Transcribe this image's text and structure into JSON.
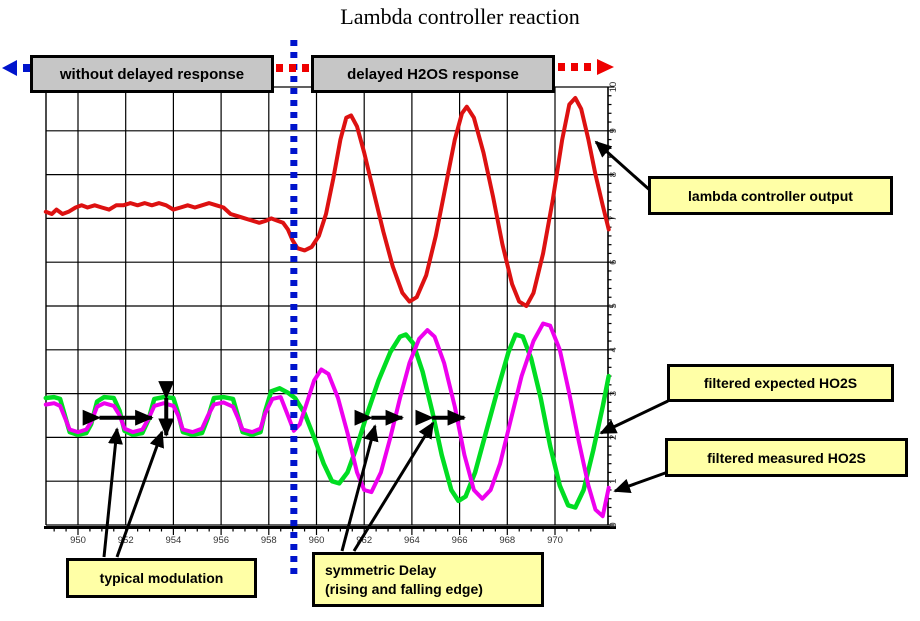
{
  "title": "Lambda controller reaction",
  "banners": {
    "without_delay": "without delayed response",
    "delayed": "delayed H2OS response"
  },
  "callouts": {
    "lambda_output": "lambda controller output",
    "filtered_expected": "filtered expected HO2S",
    "filtered_measured": "filtered measured HO2S",
    "typical_modulation": "typical modulation",
    "symmetric_delay_line1": "symmetric Delay",
    "symmetric_delay_line2": "(rising and falling edge)"
  },
  "colors": {
    "lambda_output": "#dd1111",
    "expected": "#00dd22",
    "measured": "#ee00ee",
    "divider": "#0014cc",
    "left_arrow": "#0014cc",
    "right_arrow": "#ee0000",
    "callout_bg": "#ffffa6",
    "banner_bg": "#c6c6c6",
    "grid": "#000000",
    "tick_text": "#333333"
  },
  "chart_data": {
    "type": "line",
    "title": "Lambda controller reaction",
    "xlabel": "",
    "ylabel": "",
    "xlim": [
      948.65,
      972.3
    ],
    "ylim": [
      0,
      10
    ],
    "grid": true,
    "x_ticks": [
      950,
      952,
      954,
      956,
      958,
      960,
      962,
      964,
      966,
      968,
      970
    ],
    "y_ticks": [
      0,
      1,
      2,
      3,
      4,
      5,
      6,
      7,
      8,
      9,
      10
    ],
    "legend_position": "right-callouts",
    "series": [
      {
        "name": "lambda controller output",
        "color": "#dd1111",
        "points": [
          [
            948.65,
            7.15
          ],
          [
            948.9,
            7.1
          ],
          [
            949.1,
            7.2
          ],
          [
            949.35,
            7.1
          ],
          [
            949.6,
            7.15
          ],
          [
            949.9,
            7.25
          ],
          [
            950.15,
            7.3
          ],
          [
            950.4,
            7.25
          ],
          [
            950.7,
            7.3
          ],
          [
            951.0,
            7.25
          ],
          [
            951.3,
            7.2
          ],
          [
            951.6,
            7.3
          ],
          [
            951.9,
            7.3
          ],
          [
            952.2,
            7.35
          ],
          [
            952.5,
            7.3
          ],
          [
            952.8,
            7.35
          ],
          [
            953.1,
            7.3
          ],
          [
            953.4,
            7.35
          ],
          [
            953.7,
            7.3
          ],
          [
            954.0,
            7.2
          ],
          [
            954.3,
            7.25
          ],
          [
            954.6,
            7.3
          ],
          [
            954.9,
            7.25
          ],
          [
            955.2,
            7.3
          ],
          [
            955.5,
            7.35
          ],
          [
            955.8,
            7.3
          ],
          [
            956.1,
            7.25
          ],
          [
            956.4,
            7.1
          ],
          [
            956.7,
            7.05
          ],
          [
            957.0,
            7.0
          ],
          [
            957.3,
            6.95
          ],
          [
            957.6,
            6.9
          ],
          [
            957.9,
            6.95
          ],
          [
            958.1,
            7.0
          ],
          [
            958.35,
            6.95
          ],
          [
            958.6,
            6.9
          ],
          [
            958.8,
            6.75
          ],
          [
            959.0,
            6.5
          ],
          [
            959.2,
            6.32
          ],
          [
            959.5,
            6.27
          ],
          [
            959.8,
            6.35
          ],
          [
            960.1,
            6.6
          ],
          [
            960.4,
            7.1
          ],
          [
            960.7,
            7.9
          ],
          [
            961.0,
            8.8
          ],
          [
            961.25,
            9.3
          ],
          [
            961.45,
            9.35
          ],
          [
            961.7,
            9.1
          ],
          [
            962.0,
            8.5
          ],
          [
            962.4,
            7.6
          ],
          [
            962.8,
            6.7
          ],
          [
            963.2,
            5.9
          ],
          [
            963.6,
            5.3
          ],
          [
            963.9,
            5.1
          ],
          [
            964.2,
            5.2
          ],
          [
            964.6,
            5.7
          ],
          [
            965.0,
            6.6
          ],
          [
            965.4,
            7.7
          ],
          [
            965.8,
            8.8
          ],
          [
            966.1,
            9.4
          ],
          [
            966.3,
            9.55
          ],
          [
            966.6,
            9.3
          ],
          [
            967.0,
            8.5
          ],
          [
            967.4,
            7.5
          ],
          [
            967.8,
            6.4
          ],
          [
            968.2,
            5.5
          ],
          [
            968.5,
            5.1
          ],
          [
            968.8,
            5.0
          ],
          [
            969.1,
            5.3
          ],
          [
            969.5,
            6.2
          ],
          [
            969.9,
            7.4
          ],
          [
            970.3,
            8.8
          ],
          [
            970.6,
            9.6
          ],
          [
            970.85,
            9.75
          ],
          [
            971.1,
            9.5
          ],
          [
            971.4,
            8.8
          ],
          [
            971.7,
            8.0
          ],
          [
            972.0,
            7.3
          ],
          [
            972.25,
            6.75
          ]
        ]
      },
      {
        "name": "filtered expected HO2S",
        "color": "#00dd22",
        "points": [
          [
            948.65,
            2.9
          ],
          [
            949.0,
            2.92
          ],
          [
            949.25,
            2.88
          ],
          [
            949.45,
            2.5
          ],
          [
            949.65,
            2.12
          ],
          [
            950.0,
            2.06
          ],
          [
            950.35,
            2.1
          ],
          [
            950.55,
            2.3
          ],
          [
            950.8,
            2.82
          ],
          [
            951.1,
            2.92
          ],
          [
            951.5,
            2.9
          ],
          [
            951.75,
            2.6
          ],
          [
            951.95,
            2.15
          ],
          [
            952.3,
            2.06
          ],
          [
            952.7,
            2.1
          ],
          [
            952.95,
            2.4
          ],
          [
            953.2,
            2.88
          ],
          [
            953.6,
            2.92
          ],
          [
            954.0,
            2.9
          ],
          [
            954.2,
            2.55
          ],
          [
            954.4,
            2.12
          ],
          [
            954.8,
            2.06
          ],
          [
            955.2,
            2.1
          ],
          [
            955.45,
            2.45
          ],
          [
            955.7,
            2.9
          ],
          [
            956.1,
            2.92
          ],
          [
            956.5,
            2.88
          ],
          [
            956.7,
            2.5
          ],
          [
            956.9,
            2.12
          ],
          [
            957.3,
            2.06
          ],
          [
            957.65,
            2.12
          ],
          [
            957.85,
            2.6
          ],
          [
            958.1,
            3.05
          ],
          [
            958.45,
            3.12
          ],
          [
            958.8,
            3.02
          ],
          [
            959.1,
            2.9
          ],
          [
            959.5,
            2.55
          ],
          [
            959.9,
            2.0
          ],
          [
            960.3,
            1.4
          ],
          [
            960.65,
            1.0
          ],
          [
            960.95,
            0.95
          ],
          [
            961.3,
            1.2
          ],
          [
            961.7,
            1.8
          ],
          [
            962.1,
            2.5
          ],
          [
            962.6,
            3.3
          ],
          [
            963.1,
            3.95
          ],
          [
            963.5,
            4.3
          ],
          [
            963.75,
            4.35
          ],
          [
            964.05,
            4.15
          ],
          [
            964.45,
            3.5
          ],
          [
            964.85,
            2.6
          ],
          [
            965.25,
            1.6
          ],
          [
            965.65,
            0.8
          ],
          [
            965.95,
            0.55
          ],
          [
            966.25,
            0.65
          ],
          [
            966.65,
            1.2
          ],
          [
            967.1,
            2.1
          ],
          [
            967.6,
            3.1
          ],
          [
            968.05,
            3.95
          ],
          [
            968.35,
            4.35
          ],
          [
            968.65,
            4.3
          ],
          [
            969.0,
            3.8
          ],
          [
            969.4,
            2.9
          ],
          [
            969.8,
            1.8
          ],
          [
            970.2,
            0.9
          ],
          [
            970.55,
            0.45
          ],
          [
            970.85,
            0.4
          ],
          [
            971.2,
            0.8
          ],
          [
            971.6,
            1.7
          ],
          [
            972.0,
            2.7
          ],
          [
            972.25,
            3.4
          ]
        ]
      },
      {
        "name": "filtered measured HO2S",
        "color": "#ee00ee",
        "points": [
          [
            948.65,
            2.75
          ],
          [
            949.0,
            2.78
          ],
          [
            949.25,
            2.72
          ],
          [
            949.45,
            2.45
          ],
          [
            949.65,
            2.18
          ],
          [
            950.0,
            2.12
          ],
          [
            950.35,
            2.18
          ],
          [
            950.55,
            2.35
          ],
          [
            950.8,
            2.7
          ],
          [
            951.1,
            2.78
          ],
          [
            951.5,
            2.72
          ],
          [
            951.75,
            2.5
          ],
          [
            951.95,
            2.2
          ],
          [
            952.3,
            2.12
          ],
          [
            952.7,
            2.18
          ],
          [
            952.95,
            2.42
          ],
          [
            953.2,
            2.72
          ],
          [
            953.6,
            2.78
          ],
          [
            954.0,
            2.72
          ],
          [
            954.2,
            2.5
          ],
          [
            954.4,
            2.18
          ],
          [
            954.8,
            2.12
          ],
          [
            955.2,
            2.2
          ],
          [
            955.45,
            2.5
          ],
          [
            955.7,
            2.75
          ],
          [
            956.1,
            2.8
          ],
          [
            956.5,
            2.7
          ],
          [
            956.7,
            2.45
          ],
          [
            956.9,
            2.18
          ],
          [
            957.3,
            2.12
          ],
          [
            957.65,
            2.2
          ],
          [
            957.85,
            2.55
          ],
          [
            958.15,
            2.88
          ],
          [
            958.5,
            2.92
          ],
          [
            958.8,
            2.5
          ],
          [
            959.05,
            2.15
          ],
          [
            959.3,
            2.3
          ],
          [
            959.6,
            2.8
          ],
          [
            959.9,
            3.3
          ],
          [
            960.2,
            3.55
          ],
          [
            960.5,
            3.45
          ],
          [
            960.9,
            2.9
          ],
          [
            961.3,
            2.1
          ],
          [
            961.7,
            1.2
          ],
          [
            962.0,
            0.8
          ],
          [
            962.3,
            0.75
          ],
          [
            962.7,
            1.2
          ],
          [
            963.1,
            2.0
          ],
          [
            963.5,
            2.9
          ],
          [
            963.9,
            3.7
          ],
          [
            964.3,
            4.25
          ],
          [
            964.65,
            4.45
          ],
          [
            964.95,
            4.3
          ],
          [
            965.35,
            3.7
          ],
          [
            965.8,
            2.7
          ],
          [
            966.2,
            1.6
          ],
          [
            966.6,
            0.8
          ],
          [
            966.95,
            0.6
          ],
          [
            967.3,
            0.8
          ],
          [
            967.7,
            1.4
          ],
          [
            968.1,
            2.3
          ],
          [
            968.6,
            3.4
          ],
          [
            969.1,
            4.2
          ],
          [
            969.5,
            4.6
          ],
          [
            969.8,
            4.55
          ],
          [
            970.2,
            4.0
          ],
          [
            970.6,
            3.0
          ],
          [
            971.0,
            1.9
          ],
          [
            971.4,
            0.9
          ],
          [
            971.7,
            0.35
          ],
          [
            972.0,
            0.2
          ],
          [
            972.25,
            0.85
          ]
        ]
      }
    ],
    "annotations": {
      "divider_x": 959.05,
      "modulation_period": {
        "x1": 950.9,
        "x2": 953.1,
        "y": 2.45
      },
      "modulation_amplitude": {
        "x": 953.7,
        "y1": 2.9,
        "y2": 2.05
      },
      "delay_rising_edge": {
        "x1": 962.3,
        "x2": 963.6,
        "y": 2.45
      },
      "delay_falling_edge": {
        "x1": 964.85,
        "x2": 966.2,
        "y": 2.45
      }
    }
  }
}
